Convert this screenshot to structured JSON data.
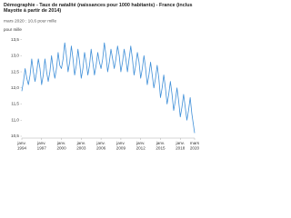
{
  "chart_data": {
    "type": "line",
    "title": "Démographie - Taux de natalité (naissances pour 1000 habitants) - France (inclus Mayotte à partir de 2014)",
    "subtitle": "mars 2020 : 10,6 pour mille",
    "y_label": "pour mille",
    "x": [
      1994,
      1994.25,
      1994.5,
      1994.75,
      1995,
      1995.25,
      1995.5,
      1995.75,
      1996,
      1996.25,
      1996.5,
      1996.75,
      1997,
      1997.25,
      1997.5,
      1997.75,
      1998,
      1998.25,
      1998.5,
      1998.75,
      1999,
      1999.25,
      1999.5,
      1999.75,
      2000,
      2000.25,
      2000.5,
      2000.75,
      2001,
      2001.25,
      2001.5,
      2001.75,
      2002,
      2002.25,
      2002.5,
      2002.75,
      2003,
      2003.25,
      2003.5,
      2003.75,
      2004,
      2004.25,
      2004.5,
      2004.75,
      2005,
      2005.25,
      2005.5,
      2005.75,
      2006,
      2006.25,
      2006.5,
      2006.75,
      2007,
      2007.25,
      2007.5,
      2007.75,
      2008,
      2008.25,
      2008.5,
      2008.75,
      2009,
      2009.25,
      2009.5,
      2009.75,
      2010,
      2010.25,
      2010.5,
      2010.75,
      2011,
      2011.25,
      2011.5,
      2011.75,
      2012,
      2012.25,
      2012.5,
      2012.75,
      2013,
      2013.25,
      2013.5,
      2013.75,
      2014,
      2014.25,
      2014.5,
      2014.75,
      2015,
      2015.25,
      2015.5,
      2015.75,
      2016,
      2016.25,
      2016.5,
      2016.75,
      2017,
      2017.25,
      2017.5,
      2017.75,
      2018,
      2018.25,
      2018.5,
      2018.75,
      2019,
      2019.25,
      2019.5,
      2019.75,
      2020.17
    ],
    "series": [
      {
        "name": "Taux de natalité",
        "color": "#3f8fd8",
        "values": [
          11.9,
          12.2,
          12.6,
          12.3,
          12.1,
          12.4,
          12.9,
          12.5,
          12.2,
          12.5,
          12.9,
          12.6,
          12.1,
          12.4,
          12.9,
          12.5,
          12.2,
          12.5,
          13.0,
          12.6,
          12.3,
          12.6,
          13.1,
          12.7,
          12.6,
          12.9,
          13.4,
          13.0,
          12.5,
          12.8,
          13.3,
          12.9,
          12.4,
          12.7,
          13.2,
          12.8,
          12.3,
          12.6,
          13.1,
          12.8,
          12.4,
          12.7,
          13.2,
          12.8,
          12.4,
          12.7,
          13.1,
          12.8,
          12.6,
          12.9,
          13.4,
          13.0,
          12.5,
          12.8,
          13.2,
          12.9,
          12.6,
          12.9,
          13.3,
          13.0,
          12.5,
          12.8,
          13.2,
          12.9,
          12.5,
          12.9,
          13.3,
          12.9,
          12.4,
          12.7,
          13.1,
          12.8,
          12.3,
          12.6,
          13.0,
          12.6,
          12.1,
          12.4,
          12.8,
          12.4,
          12.0,
          12.3,
          12.7,
          12.3,
          11.7,
          12.0,
          12.4,
          12.0,
          11.5,
          11.8,
          12.2,
          11.8,
          11.3,
          11.6,
          12.0,
          11.6,
          11.1,
          11.4,
          11.8,
          11.4,
          11.0,
          11.3,
          11.7,
          11.2,
          10.6
        ]
      }
    ],
    "xlim": [
      1994,
      2020.17
    ],
    "xticks": [
      {
        "value": 1994,
        "label": "janv. 1994"
      },
      {
        "value": 1997,
        "label": "janv. 1997"
      },
      {
        "value": 2000,
        "label": "janv. 2000"
      },
      {
        "value": 2003,
        "label": "janv. 2003"
      },
      {
        "value": 2006,
        "label": "janv. 2006"
      },
      {
        "value": 2009,
        "label": "janv. 2009"
      },
      {
        "value": 2012,
        "label": "janv. 2012"
      },
      {
        "value": 2015,
        "label": "janv. 2015"
      },
      {
        "value": 2018,
        "label": "janv. 2018"
      },
      {
        "value": 2020.17,
        "label": "mars 2020"
      }
    ],
    "ylim": [
      10.5,
      13.6
    ],
    "yticks": [
      {
        "value": 10.5,
        "label": "10,5"
      },
      {
        "value": 11,
        "label": "11,0"
      },
      {
        "value": 11.5,
        "label": "11,5"
      },
      {
        "value": 12,
        "label": "12,0"
      },
      {
        "value": 12.5,
        "label": "12,5"
      },
      {
        "value": 13,
        "label": "13,0"
      },
      {
        "value": 13.5,
        "label": "13,5"
      }
    ]
  }
}
